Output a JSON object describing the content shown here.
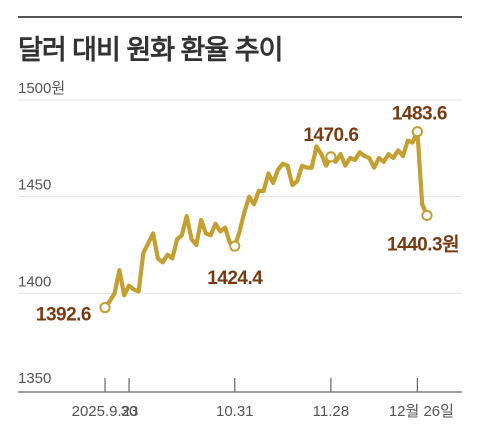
{
  "title": "달러 대비 원화 환율 추이",
  "chart_data": {
    "type": "line",
    "title": "달러 대비 원화 환율 추이",
    "ylim": [
      1350,
      1500
    ],
    "yticks": [
      {
        "value": 1500,
        "label": "1500원"
      },
      {
        "value": 1450,
        "label": "1450"
      },
      {
        "value": 1400,
        "label": "1400"
      },
      {
        "value": 1350,
        "label": "1350"
      }
    ],
    "xticks": [
      {
        "index": 0,
        "label": "2025.9.23"
      },
      {
        "index": 5,
        "label": "30"
      },
      {
        "index": 27,
        "label": "10.31"
      },
      {
        "index": 47,
        "label": "11.28"
      },
      {
        "index": 65,
        "label": "12월 26일"
      }
    ],
    "grid": true,
    "series": [
      {
        "values": [
          1392.6,
          1396,
          1400,
          1412,
          1399,
          1404,
          1402,
          1401,
          1421,
          1426,
          1431,
          1418,
          1416,
          1420,
          1418,
          1428,
          1430,
          1440,
          1428,
          1425,
          1438,
          1431,
          1430,
          1436,
          1432,
          1434,
          1426,
          1424.4,
          1432,
          1442,
          1450,
          1446,
          1453,
          1453,
          1462,
          1457,
          1464,
          1467,
          1466,
          1456,
          1458,
          1466,
          1465,
          1465,
          1476,
          1472,
          1466,
          1470.6,
          1468,
          1472,
          1466,
          1470,
          1469,
          1473,
          1471,
          1470,
          1465,
          1470,
          1468,
          1472,
          1470,
          1474,
          1471,
          1479,
          1478,
          1483.6,
          1446,
          1440.3
        ],
        "color": "#c4a032"
      }
    ],
    "annotations": [
      {
        "index": 0,
        "value": 1392.6,
        "label": "1392.6"
      },
      {
        "index": 27,
        "value": 1424.4,
        "label": "1424.4"
      },
      {
        "index": 47,
        "value": 1470.6,
        "label": "1470.6"
      },
      {
        "index": 65,
        "value": 1483.6,
        "label": "1483.6"
      },
      {
        "index": 67,
        "value": 1440.3,
        "label": "1440.3원"
      }
    ],
    "colors": {
      "line": "#c4a032",
      "label": "#7a3a12",
      "grid": "#e6e6e6",
      "axis": "#666666"
    }
  }
}
